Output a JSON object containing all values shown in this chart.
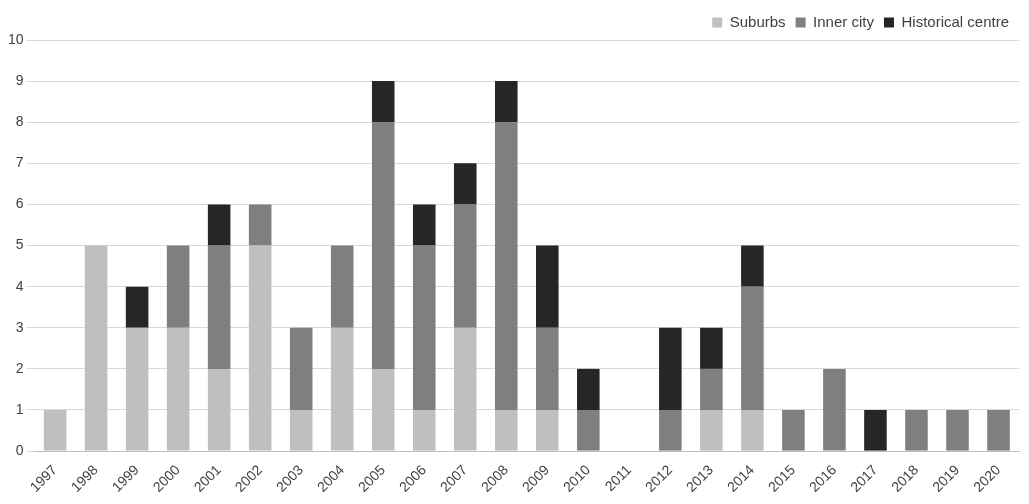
{
  "chart_data": {
    "type": "bar",
    "stacked": true,
    "categories": [
      "1997",
      "1998",
      "1999",
      "2000",
      "2001",
      "2002",
      "2003",
      "2004",
      "2005",
      "2006",
      "2007",
      "2008",
      "2009",
      "2010",
      "2011",
      "2012",
      "2013",
      "2014",
      "2015",
      "2016",
      "2017",
      "2018",
      "2019",
      "2020"
    ],
    "series": [
      {
        "name": "Suburbs",
        "color": "#bfbfbf",
        "values": [
          1,
          5,
          3,
          3,
          2,
          5,
          1,
          3,
          2,
          1,
          3,
          1,
          1,
          0,
          0,
          0,
          1,
          1,
          0,
          0,
          0,
          0,
          0,
          0
        ]
      },
      {
        "name": "Inner city",
        "color": "#7f7f7f",
        "values": [
          0,
          0,
          0,
          2,
          3,
          1,
          2,
          2,
          6,
          4,
          3,
          7,
          2,
          1,
          0,
          1,
          1,
          3,
          1,
          2,
          0,
          1,
          1,
          1
        ]
      },
      {
        "name": "Historical centre",
        "color": "#262626",
        "values": [
          0,
          0,
          1,
          0,
          1,
          0,
          0,
          0,
          1,
          1,
          1,
          1,
          2,
          1,
          0,
          2,
          1,
          1,
          0,
          0,
          1,
          0,
          0,
          0
        ]
      }
    ],
    "ylim": [
      0,
      10
    ],
    "yticks": [
      0,
      1,
      2,
      3,
      4,
      5,
      6,
      7,
      8,
      9,
      10
    ],
    "grid": "y",
    "legend": "top right"
  }
}
